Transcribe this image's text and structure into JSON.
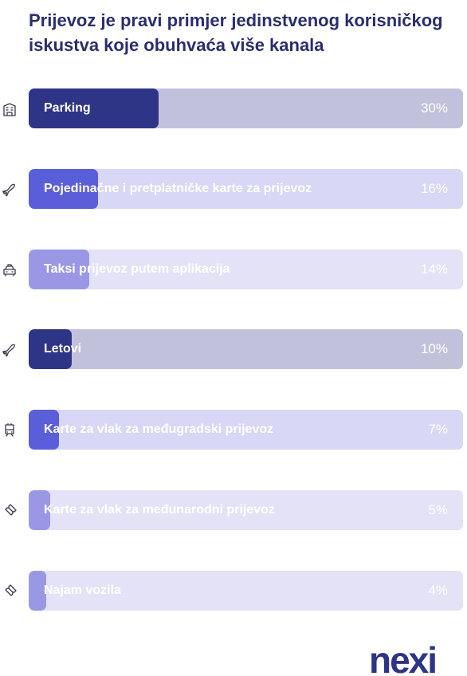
{
  "title": "Prijevoz je pravi primjer jedinstvenog korisničkog iskustva koje obuhvaća više kanala",
  "chart_data": {
    "type": "bar",
    "orientation": "horizontal",
    "title": "Prijevoz je pravi primjer jedinstvenog korisničkog iskustva koje obuhvaća više kanala",
    "xlabel": "",
    "ylabel": "",
    "xlim": [
      0,
      100
    ],
    "grid": false,
    "legend": "none",
    "categories": [
      "Parking",
      "Pojedinačne i pretplatničke karte za prijevoz",
      "Taksi prijevoz putem aplikacija",
      "Letovi",
      "Karte za vlak za međugradski prijevoz",
      "Karte za vlak za međunarodni prijevoz",
      "Najam vozila"
    ],
    "values": [
      30,
      16,
      14,
      10,
      7,
      5,
      4
    ],
    "value_labels": [
      "30%",
      "16%",
      "14%",
      "10%",
      "7%",
      "5%",
      "4%"
    ],
    "icons": [
      "building-icon",
      "plane-icon",
      "taxi-icon",
      "plane-icon",
      "train-icon",
      "ticket-icon",
      "ticket-icon"
    ],
    "fill_colors": [
      "#2e3586",
      "#5a5ed8",
      "#9a98e4",
      "#2e3586",
      "#5a5ed8",
      "#9a98e4",
      "#9a98e4"
    ],
    "track_colors": [
      "#c2c1dc",
      "#d8d7f5",
      "#e3e2f7",
      "#c2c1dc",
      "#d8d7f5",
      "#e3e2f7",
      "#e3e2f7"
    ]
  },
  "brand": {
    "logo_text": "nexi",
    "logo_color": "#2e3586"
  }
}
